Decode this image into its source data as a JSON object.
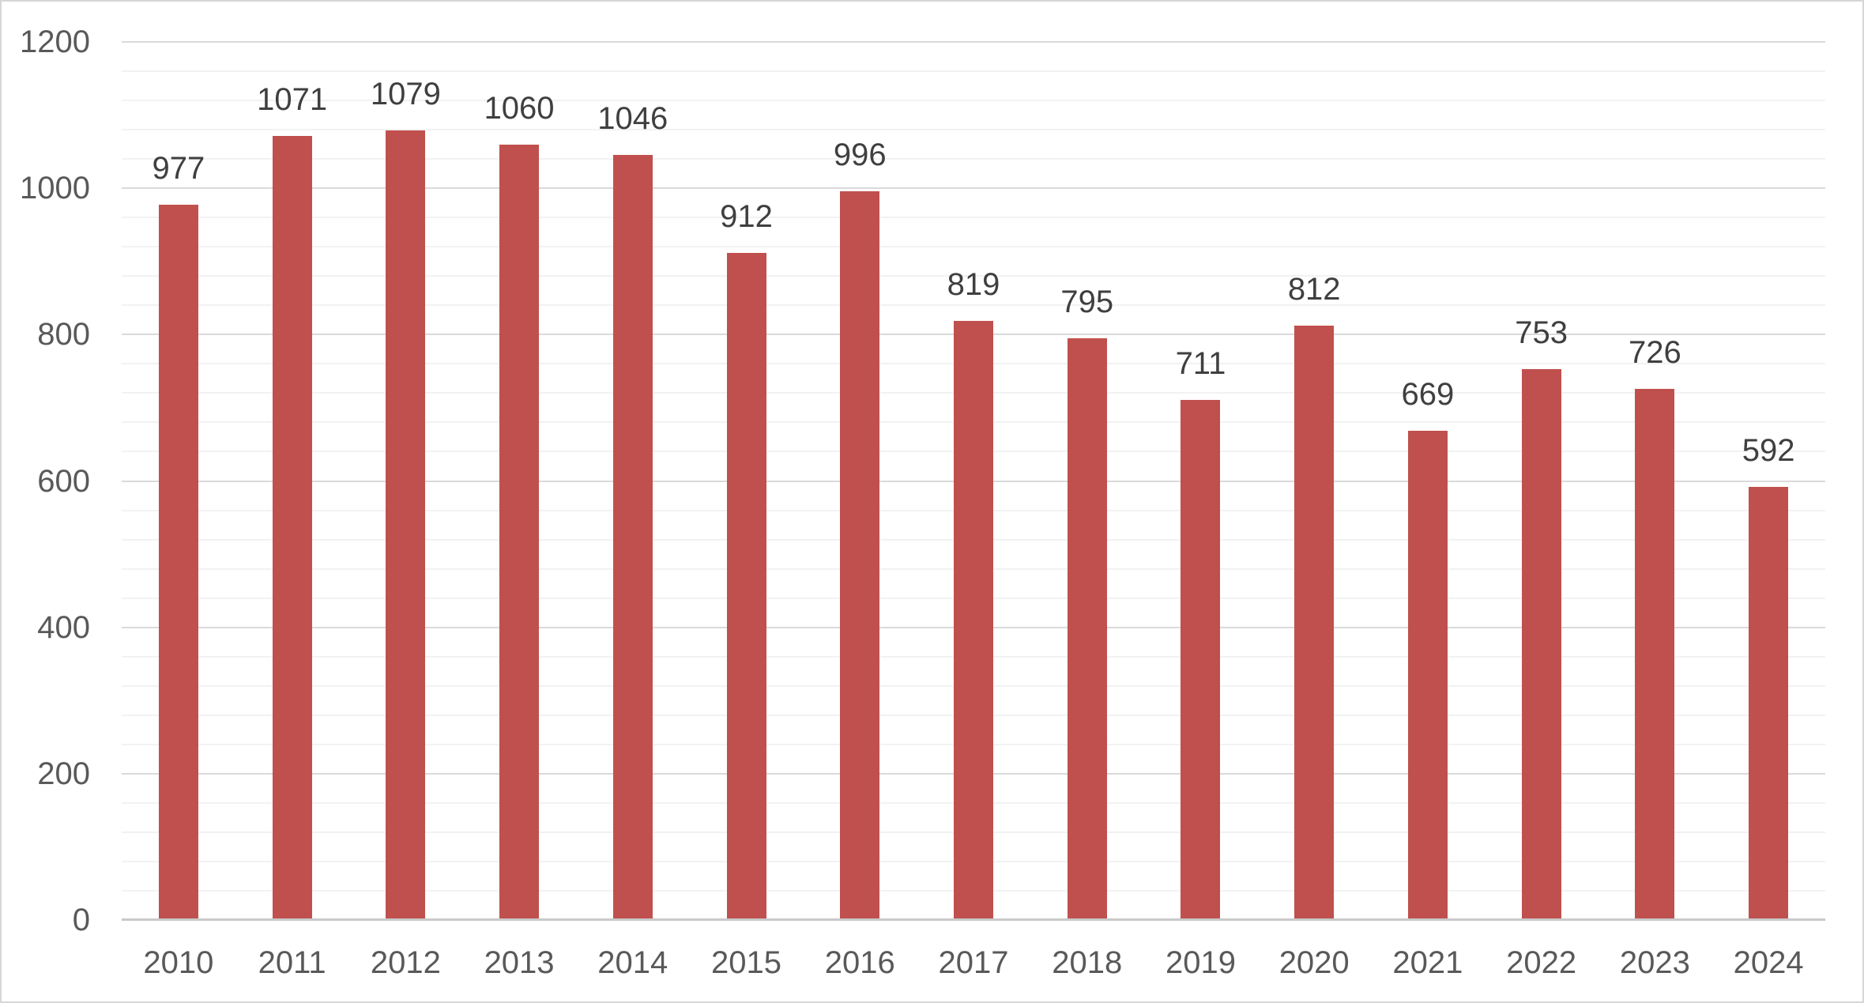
{
  "chart_data": {
    "type": "bar",
    "title": "",
    "categories": [
      "2010",
      "2011",
      "2012",
      "2013",
      "2014",
      "2015",
      "2016",
      "2017",
      "2018",
      "2019",
      "2020",
      "2021",
      "2022",
      "2023",
      "2024"
    ],
    "values": [
      977,
      1071,
      1079,
      1060,
      1046,
      912,
      996,
      819,
      795,
      711,
      812,
      669,
      753,
      726,
      592
    ],
    "data_labels": [
      "977",
      "1071",
      "1079",
      "1060",
      "1046",
      "912",
      "996",
      "819",
      "795",
      "711",
      "812",
      "669",
      "753",
      "726",
      "592"
    ],
    "xlabel": "",
    "ylabel": "",
    "ylim": [
      0,
      1200
    ],
    "yticks": [
      0,
      200,
      400,
      600,
      800,
      1000,
      1200
    ],
    "ytick_labels": [
      "0",
      "200",
      "400",
      "600",
      "800",
      "1000",
      "1200"
    ],
    "major_gridline_unit": 200,
    "minor_gridline_unit": 40,
    "grid": true,
    "legend": "none",
    "colors": {
      "bar_fill": "#c0504d",
      "major_gridline": "#dadada",
      "minor_gridline": "#f2f2f2",
      "axis_line": "#c9c9c9",
      "axis_text": "#595959",
      "data_label_text": "#3f3f3f",
      "chart_border": "#d6d6d6",
      "background": "#ffffff"
    }
  }
}
